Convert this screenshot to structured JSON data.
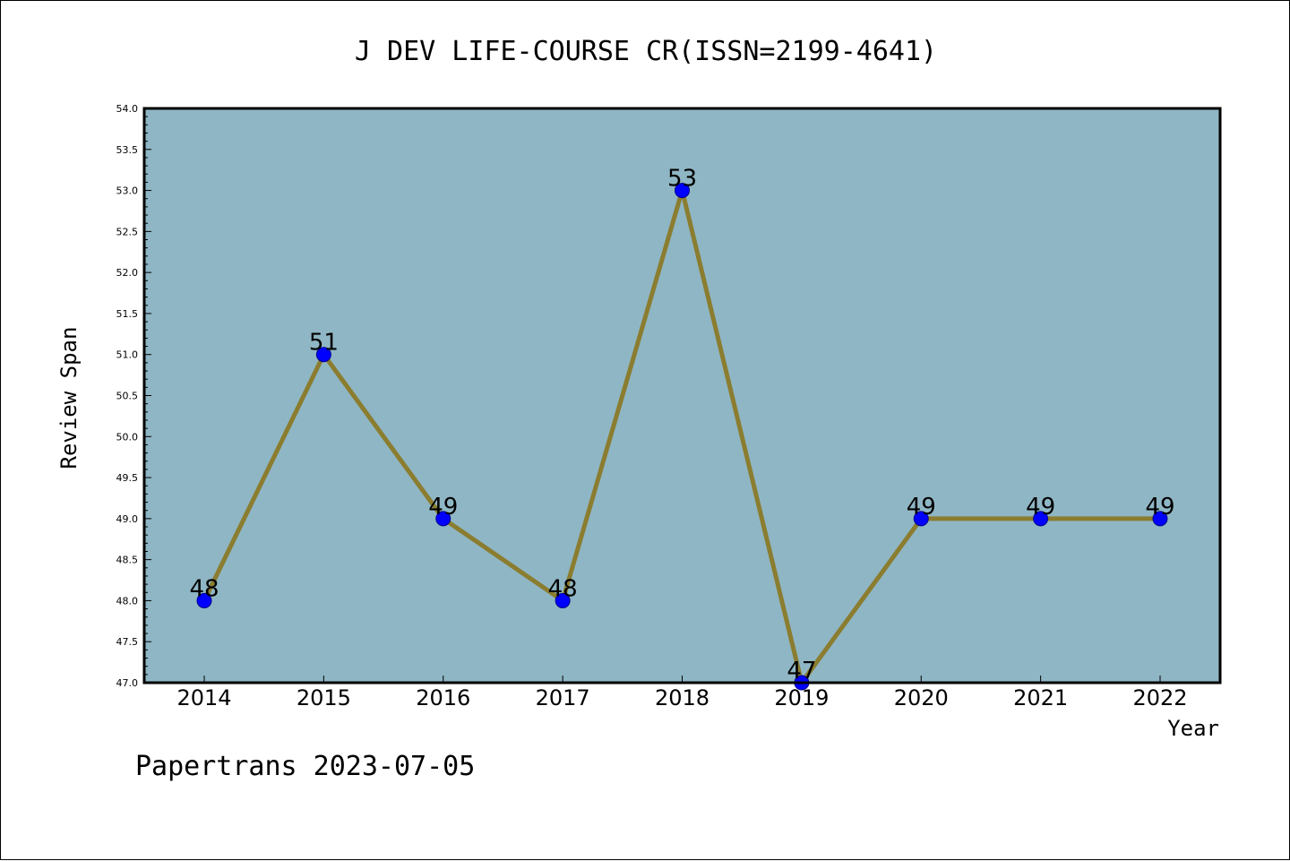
{
  "chart_data": {
    "type": "line",
    "title": "J DEV LIFE-COURSE CR(ISSN=2199-4641)",
    "xlabel": "Year",
    "ylabel": "Review Span",
    "x": [
      "2014",
      "2015",
      "2016",
      "2017",
      "2018",
      "2019",
      "2020",
      "2021",
      "2022"
    ],
    "values": [
      48,
      51,
      49,
      48,
      53,
      47,
      49,
      49,
      49
    ],
    "data_labels": [
      "48",
      "51",
      "49",
      "48",
      "53",
      "47",
      "49",
      "49",
      "49"
    ],
    "ylim": [
      47.0,
      54.0
    ],
    "yticks": [
      "47.0",
      "47.5",
      "48.0",
      "48.5",
      "49.0",
      "49.5",
      "50.0",
      "50.5",
      "51.0",
      "51.5",
      "52.0",
      "52.5",
      "53.0",
      "53.5",
      "54.0"
    ],
    "grid": false,
    "colors": {
      "plot_background": "#8fb6c4",
      "line": "#8b7d30",
      "marker": "#0000ff"
    }
  },
  "footer": "Papertrans 2023-07-05"
}
